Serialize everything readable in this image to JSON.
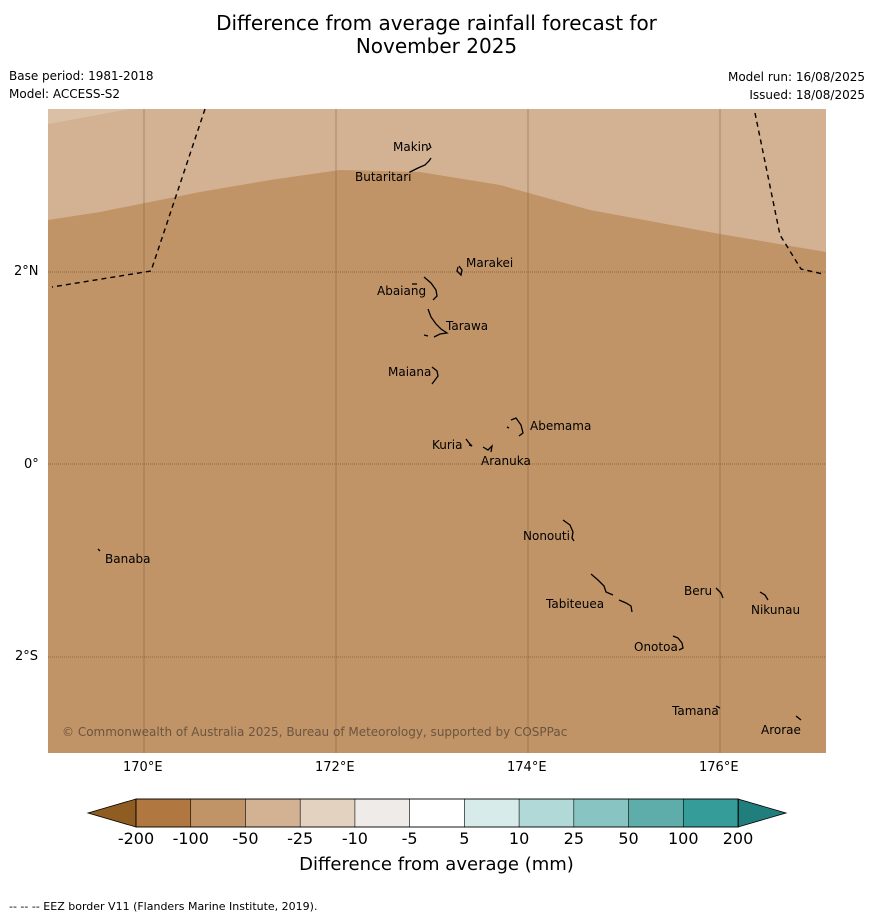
{
  "title_line1": "Difference from average rainfall forecast for",
  "title_line2": "November 2025",
  "base_period": "Base period: 1981-2018",
  "model": "Model: ACCESS-S2",
  "model_run": "Model run: 16/08/2025",
  "issued": "Issued: 18/08/2025",
  "lat_labels": [
    "2°N",
    "0°",
    "2°S"
  ],
  "lon_labels": [
    "170°E",
    "172°E",
    "174°E",
    "176°E"
  ],
  "islands": [
    "Makin",
    "Butaritari",
    "Marakei",
    "Abaiang",
    "Tarawa",
    "Maiana",
    "Abemama",
    "Kuria",
    "Aranuka",
    "Nonouti",
    "Banaba",
    "Beru",
    "Nikunau",
    "Tabiteuea",
    "Onotoa",
    "Tamana",
    "Arorae"
  ],
  "copyright": "© Commonwealth of Australia 2025, Bureau of Meteorology, supported by COSPPac",
  "colorbar": {
    "labels": [
      "-200",
      "-100",
      "-50",
      "-25",
      "-10",
      "-5",
      "5",
      "10",
      "25",
      "50",
      "100",
      "200"
    ],
    "colors": [
      "#b07840",
      "#c19467",
      "#d2b292",
      "#e4d2c0",
      "#efebe8",
      "#ffffff",
      "#d7ebea",
      "#b0d9d8",
      "#88c4c2",
      "#5eadab",
      "#369c9a"
    ],
    "extend_low_color": "#8f5c22",
    "extend_high_color": "#207f7d",
    "title": "Difference from average (mm)"
  },
  "map_colors": {
    "region_minus_100_to_50": "#c19467",
    "region_minus_50_to_25": "#d2b292",
    "eez_border": "#000000"
  },
  "footnote": "--  --  -- EEZ border V11 (Flanders Marine Institute, 2019)."
}
